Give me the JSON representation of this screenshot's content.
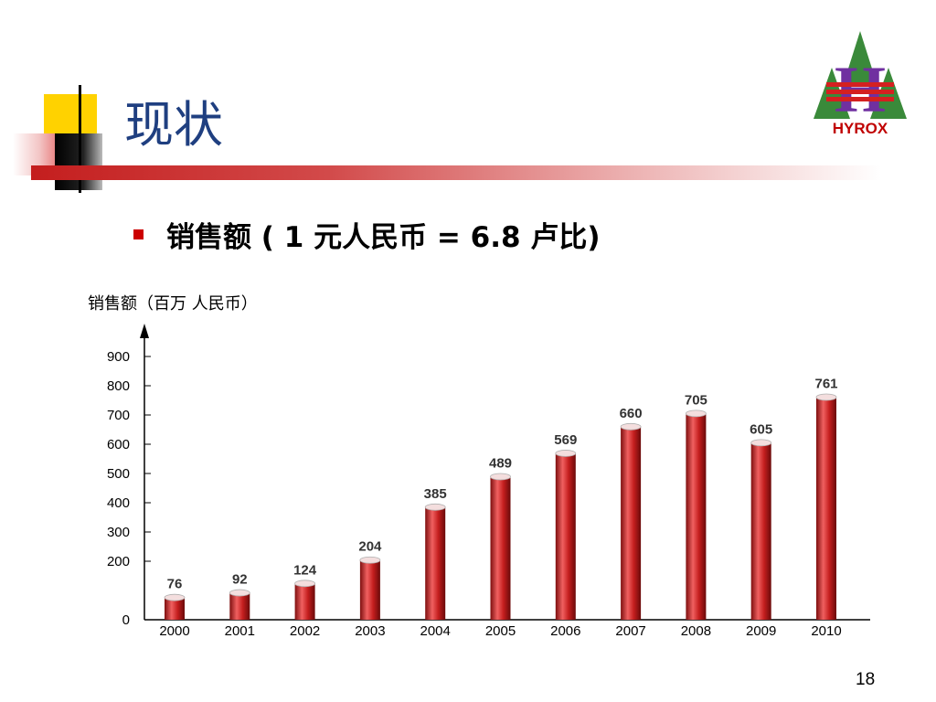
{
  "slide": {
    "title": "现状",
    "bullet": "销售额 ( 1 元人民币 = 6.8 卢比)",
    "page_number": "18"
  },
  "logo": {
    "text": "HYROX",
    "colors": {
      "tree": "#3a8a3a",
      "letter": "#7030a0",
      "band": "#d42020",
      "text": "#c00000"
    }
  },
  "colors": {
    "title": "#1f3f80",
    "bullet_marker": "#cc0000",
    "bar": "#c41e1e",
    "bar_highlight": "#f06060"
  },
  "chart_data": {
    "type": "bar",
    "ylabel": "销售额（百万 人民币）",
    "categories": [
      "2000",
      "2001",
      "2002",
      "2003",
      "2004",
      "2005",
      "2006",
      "2007",
      "2008",
      "2009",
      "2010"
    ],
    "values": [
      76,
      92,
      124,
      204,
      385,
      489,
      569,
      660,
      705,
      605,
      761
    ],
    "yticks": [
      0,
      200,
      300,
      400,
      500,
      600,
      700,
      800,
      900
    ],
    "ylim": [
      0,
      950
    ],
    "grid": false,
    "legend": "none"
  }
}
